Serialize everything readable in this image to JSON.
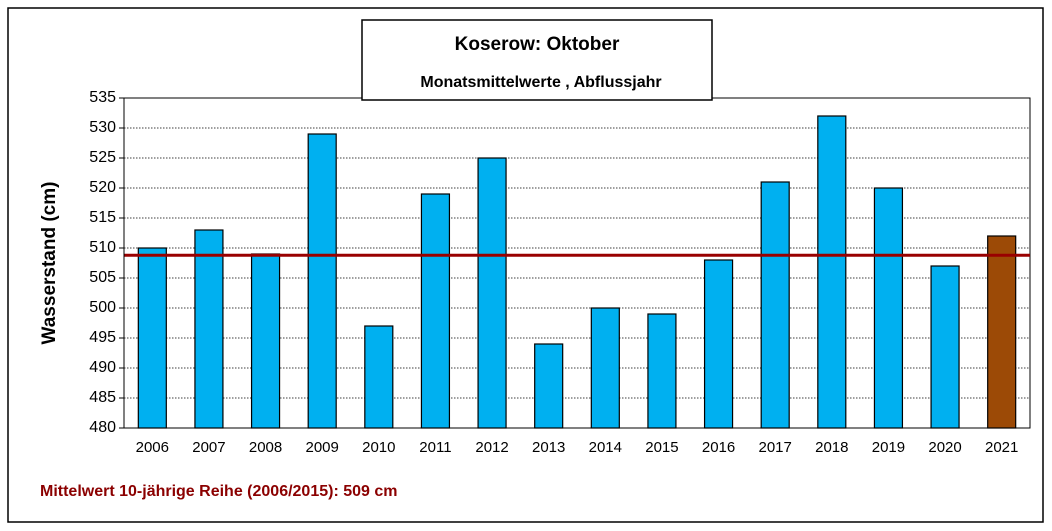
{
  "chart_data": {
    "type": "bar",
    "title": "Koserow: Oktober",
    "subtitle": "Monatsmittelwerte , Abflussjahr",
    "y_label": "Wasserstand (cm)",
    "annotation": "Mittelwert 10-jährige Reihe (2006/2015): 509 cm",
    "categories": [
      "2006",
      "2007",
      "2008",
      "2009",
      "2010",
      "2011",
      "2012",
      "2013",
      "2014",
      "2015",
      "2016",
      "2017",
      "2018",
      "2019",
      "2020",
      "2021"
    ],
    "values": [
      510,
      513,
      509,
      529,
      497,
      519,
      525,
      494,
      500,
      499,
      508,
      521,
      532,
      520,
      507,
      512
    ],
    "colors": [
      "#00b0f0",
      "#00b0f0",
      "#00b0f0",
      "#00b0f0",
      "#00b0f0",
      "#00b0f0",
      "#00b0f0",
      "#00b0f0",
      "#00b0f0",
      "#00b0f0",
      "#00b0f0",
      "#00b0f0",
      "#00b0f0",
      "#00b0f0",
      "#00b0f0",
      "#9c4a06"
    ],
    "mean_line": {
      "value": 508.8,
      "color": "#990000"
    },
    "ylim": [
      480,
      535
    ],
    "yticks": [
      480,
      485,
      490,
      495,
      500,
      505,
      510,
      515,
      520,
      525,
      530,
      535
    ],
    "grid": true
  }
}
